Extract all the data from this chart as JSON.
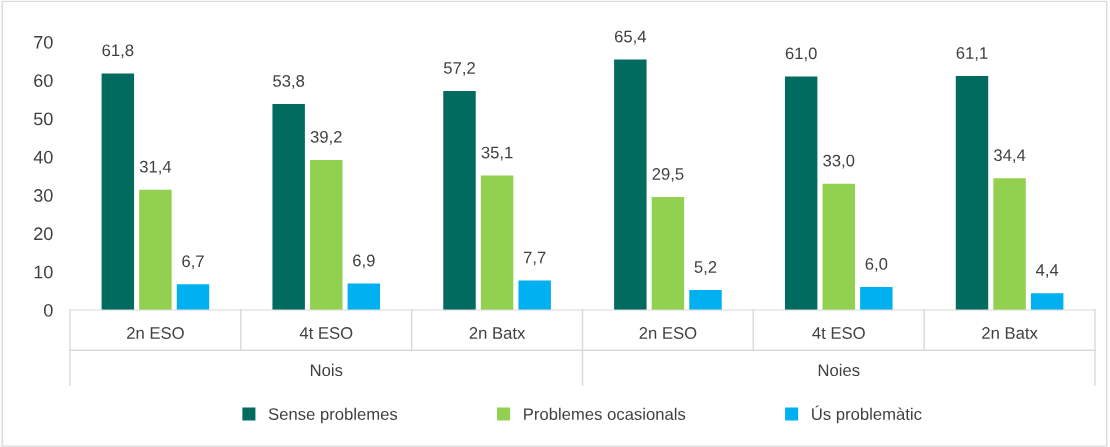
{
  "chart_data": {
    "type": "bar",
    "categories": [
      "2n ESO",
      "4t ESO",
      "2n Batx",
      "2n ESO",
      "4t ESO",
      "2n Batx"
    ],
    "series": [
      {
        "name": "Sense problemes",
        "color": "#006b5e",
        "values": [
          61.8,
          53.8,
          57.2,
          65.4,
          61.0,
          61.1
        ],
        "value_labels": [
          "61,8",
          "53,8",
          "57,2",
          "65,4",
          "61,0",
          "61,1"
        ]
      },
      {
        "name": "Problemes ocasionals",
        "color": "#92d050",
        "values": [
          31.4,
          39.2,
          35.1,
          29.5,
          33.0,
          34.4
        ],
        "value_labels": [
          "31,4",
          "39,2",
          "35,1",
          "29,5",
          "33,0",
          "34,4"
        ]
      },
      {
        "name": "Ús problemàtic",
        "color": "#00b0f0",
        "values": [
          6.7,
          6.9,
          7.7,
          5.2,
          6.0,
          4.4
        ],
        "value_labels": [
          "6,7",
          "6,9",
          "7,7",
          "5,2",
          "6,0",
          "4,4"
        ]
      }
    ],
    "annotations": [
      "Nois",
      "Noies"
    ],
    "ylim": [
      0,
      70
    ],
    "yticks": [
      0,
      10,
      20,
      30,
      40,
      50,
      60,
      70
    ],
    "grid": false,
    "legend": "bottom"
  }
}
